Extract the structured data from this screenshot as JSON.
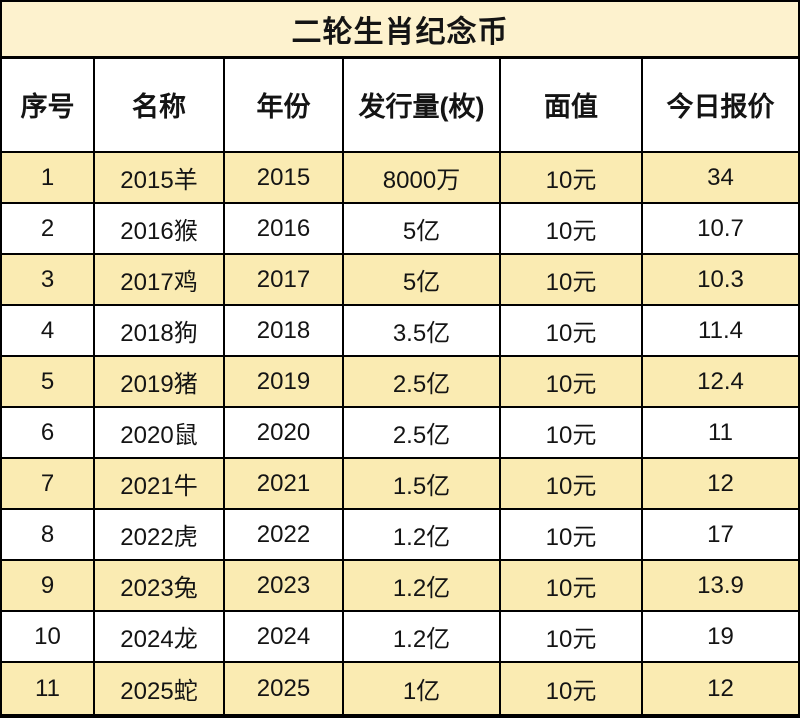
{
  "title": "二轮生肖纪念币",
  "chart_data": {
    "type": "table",
    "title": "二轮生肖纪念币",
    "columns": [
      "序号",
      "名称",
      "年份",
      "发行量(枚)",
      "面值",
      "今日报价"
    ],
    "rows": [
      [
        "1",
        "2015羊",
        "2015",
        "8000万",
        "10元",
        "34"
      ],
      [
        "2",
        "2016猴",
        "2016",
        "5亿",
        "10元",
        "10.7"
      ],
      [
        "3",
        "2017鸡",
        "2017",
        "5亿",
        "10元",
        "10.3"
      ],
      [
        "4",
        "2018狗",
        "2018",
        "3.5亿",
        "10元",
        "11.4"
      ],
      [
        "5",
        "2019猪",
        "2019",
        "2.5亿",
        "10元",
        "12.4"
      ],
      [
        "6",
        "2020鼠",
        "2020",
        "2.5亿",
        "10元",
        "11"
      ],
      [
        "7",
        "2021牛",
        "2021",
        "1.5亿",
        "10元",
        "12"
      ],
      [
        "8",
        "2022虎",
        "2022",
        "1.2亿",
        "10元",
        "17"
      ],
      [
        "9",
        "2023兔",
        "2023",
        "1.2亿",
        "10元",
        "13.9"
      ],
      [
        "10",
        "2024龙",
        "2024",
        "1.2亿",
        "10元",
        "19"
      ],
      [
        "11",
        "2025蛇",
        "2025",
        "1亿",
        "10元",
        "12"
      ]
    ]
  },
  "colors": {
    "title_bg": "#FDF2CE",
    "row_alt_bg": "#FAEBB2",
    "row_bg": "#FFFFFF",
    "border": "#000000",
    "text": "#141414"
  }
}
